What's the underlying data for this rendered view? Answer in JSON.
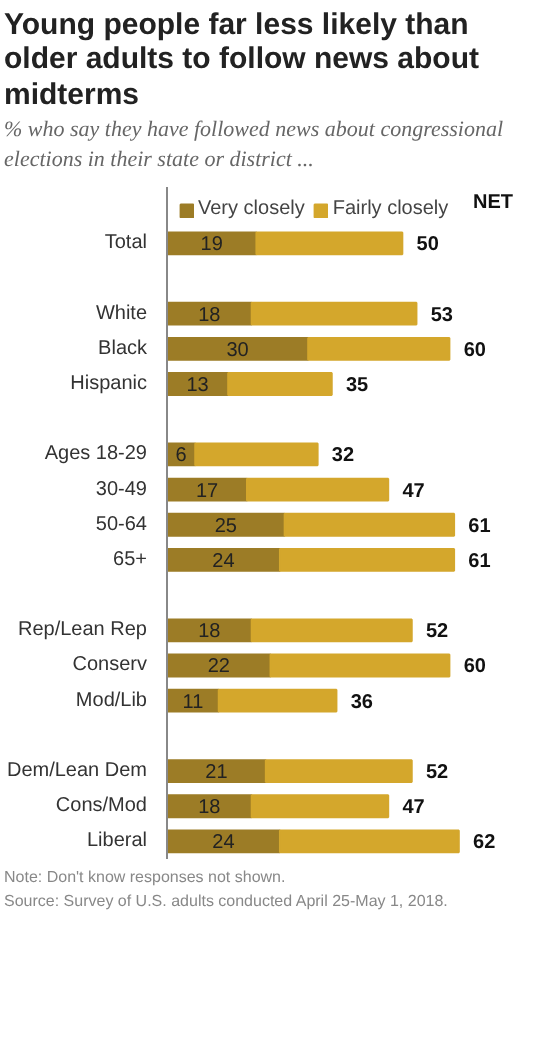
{
  "chart_data": {
    "type": "bar",
    "orientation": "horizontal",
    "stacked": true,
    "title": "Young people far less likely than older adults to follow news about midterms",
    "subtitle": "% who say they have followed news about congressional elections in their state or district ...",
    "categories": [
      "Total",
      null,
      "White",
      "Black",
      "Hispanic",
      null,
      "Ages 18-29",
      "30-49",
      "50-64",
      "65+",
      null,
      "Rep/Lean Rep",
      "Conserv",
      "Mod/Lib",
      null,
      "Dem/Lean Dem",
      "Cons/Mod",
      "Liberal"
    ],
    "series": [
      {
        "name": "Very closely",
        "color": "#9c7c26",
        "values": [
          19,
          null,
          18,
          30,
          13,
          null,
          6,
          17,
          25,
          24,
          null,
          18,
          22,
          11,
          null,
          21,
          18,
          24
        ],
        "value_labels": [
          "19",
          null,
          "18",
          "30",
          "13",
          null,
          "6",
          "17",
          "25",
          "24",
          null,
          "18",
          "22",
          "11",
          null,
          "21",
          "18",
          "24"
        ]
      },
      {
        "name": "Fairly closely",
        "color": "#d4a72c",
        "values": [
          31,
          null,
          35,
          30,
          22,
          null,
          26,
          30,
          36,
          37,
          null,
          34,
          38,
          25,
          null,
          31,
          29,
          38
        ]
      }
    ],
    "totals": [
      "50",
      null,
      "53",
      "60",
      "35",
      null,
      "32",
      "47",
      "61",
      "61",
      null,
      "52",
      "60",
      "36",
      null,
      "52",
      "47",
      "62"
    ],
    "legend": "top",
    "grid": false,
    "annotations": [
      "NET",
      "Note: Don't know responses not shown.",
      "Source: Survey of U.S. adults conducted April 25-May 1, 2018."
    ]
  }
}
